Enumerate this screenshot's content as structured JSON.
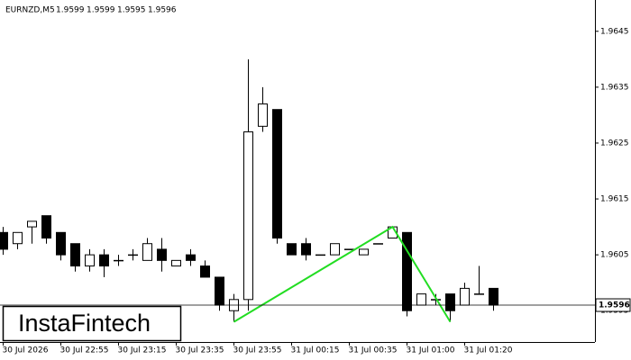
{
  "chart_data": {
    "type": "candlestick",
    "title": "EURNZD,M5",
    "categories": [
      "30 Jul 2026",
      null,
      null,
      null,
      "30 Jul 22:55",
      null,
      null,
      null,
      "30 Jul 23:15",
      null,
      null,
      null,
      "30 Jul 23:35",
      null,
      null,
      null,
      "30 Jul 23:55",
      null,
      null,
      null,
      "31 Jul 00:15",
      null,
      null,
      null,
      "31 Jul 00:35",
      null,
      null,
      null,
      "31 Jul 01:00",
      null,
      null,
      null,
      "31 Jul 01:20",
      null,
      null
    ],
    "open": [
      1.9609,
      1.9607,
      1.961,
      1.9612,
      1.9609,
      1.9607,
      1.9603,
      1.9605,
      1.9604,
      1.9605,
      1.9604,
      1.9606,
      1.9603,
      1.9605,
      1.9603,
      1.9601,
      1.9595,
      1.9597,
      1.9628,
      1.9631,
      1.9607,
      1.9607,
      1.9605,
      1.9605,
      1.9606,
      1.9605,
      1.9607,
      1.9608,
      1.9609,
      1.9596,
      1.9597,
      1.9598,
      1.9596,
      1.9598,
      1.9599
    ],
    "high": [
      1.961,
      1.9609,
      1.9611,
      1.9612,
      1.9609,
      1.9607,
      1.9606,
      1.9606,
      1.9605,
      1.9606,
      1.9608,
      1.9608,
      1.9604,
      1.9606,
      1.9604,
      1.9601,
      1.9598,
      1.964,
      1.9635,
      1.9631,
      1.9607,
      1.9608,
      1.9605,
      1.9607,
      1.9606,
      1.9606,
      1.9607,
      1.961,
      1.9609,
      1.9598,
      1.9598,
      1.9598,
      1.96,
      1.9603,
      1.9599
    ],
    "low": [
      1.9605,
      1.9606,
      1.9607,
      1.9607,
      1.9604,
      1.9602,
      1.9602,
      1.9601,
      1.9603,
      1.9604,
      1.9604,
      1.9602,
      1.9603,
      1.9603,
      1.9601,
      1.9595,
      1.9593,
      1.9595,
      1.9627,
      1.9607,
      1.9605,
      1.9604,
      1.9605,
      1.9605,
      1.9606,
      1.9605,
      1.9607,
      1.9608,
      1.9594,
      1.9596,
      1.9596,
      1.9593,
      1.9596,
      1.9598,
      1.9595
    ],
    "close": [
      1.9606,
      1.9609,
      1.9611,
      1.9608,
      1.9605,
      1.9603,
      1.9605,
      1.9603,
      1.9604,
      1.9605,
      1.9607,
      1.9604,
      1.9604,
      1.9604,
      1.9601,
      1.9596,
      1.9597,
      1.9627,
      1.9632,
      1.9608,
      1.9605,
      1.9605,
      1.9605,
      1.9607,
      1.9606,
      1.9606,
      1.9607,
      1.961,
      1.9595,
      1.9598,
      1.9597,
      1.9595,
      1.9599,
      1.9598,
      1.9596
    ],
    "ylim": [
      1.95894,
      1.96506
    ],
    "yticks": [
      1.9645,
      1.9635,
      1.9625,
      1.9615,
      1.9605,
      1.9595
    ],
    "last_price": 1.9596,
    "pattern": {
      "color": "#22dd22",
      "x": [
        16,
        27,
        31
      ],
      "y": [
        1.9593,
        1.961,
        1.9593
      ]
    },
    "watermark": "InstaFintech"
  }
}
